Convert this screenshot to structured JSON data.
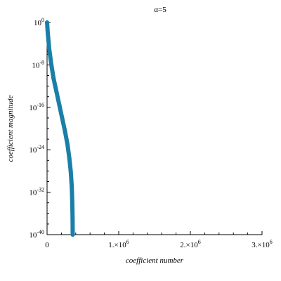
{
  "chart_data": {
    "type": "line",
    "title": "α=5",
    "xlabel": "coefficient number",
    "ylabel": "coefficient magnitude",
    "x_scale": "linear",
    "y_scale": "log",
    "xlim": [
      0,
      3000000
    ],
    "ylim_log10": [
      -40,
      0
    ],
    "x_ticks": [
      {
        "value": 0,
        "label": "0"
      },
      {
        "value": 1000000,
        "label": "1.×10",
        "exp": "6"
      },
      {
        "value": 2000000,
        "label": "2.×10",
        "exp": "6"
      },
      {
        "value": 3000000,
        "label": "3.×10",
        "exp": "6"
      }
    ],
    "y_ticks": [
      {
        "log10": 0,
        "base": "10",
        "exp": "0"
      },
      {
        "log10": -8,
        "base": "10",
        "exp": "-8"
      },
      {
        "log10": -16,
        "base": "10",
        "exp": "-16"
      },
      {
        "log10": -24,
        "base": "10",
        "exp": "-24"
      },
      {
        "log10": -32,
        "base": "10",
        "exp": "-32"
      },
      {
        "log10": -40,
        "base": "10",
        "exp": "-40"
      }
    ],
    "grid": false,
    "legend": "none",
    "series": [
      {
        "color": "#1a7fa8",
        "points": [
          {
            "x": 0,
            "log10y": 0
          },
          {
            "x": 10000,
            "log10y": -2
          },
          {
            "x": 30000,
            "log10y": -5
          },
          {
            "x": 60000,
            "log10y": -8
          },
          {
            "x": 90000,
            "log10y": -10.5
          },
          {
            "x": 130000,
            "log10y": -13
          },
          {
            "x": 170000,
            "log10y": -15.5
          },
          {
            "x": 210000,
            "log10y": -18
          },
          {
            "x": 250000,
            "log10y": -20.5
          },
          {
            "x": 285000,
            "log10y": -23
          },
          {
            "x": 310000,
            "log10y": -25.5
          },
          {
            "x": 330000,
            "log10y": -28
          },
          {
            "x": 345000,
            "log10y": -31
          },
          {
            "x": 352000,
            "log10y": -34
          },
          {
            "x": 356000,
            "log10y": -37
          },
          {
            "x": 358000,
            "log10y": -40
          }
        ]
      }
    ]
  }
}
